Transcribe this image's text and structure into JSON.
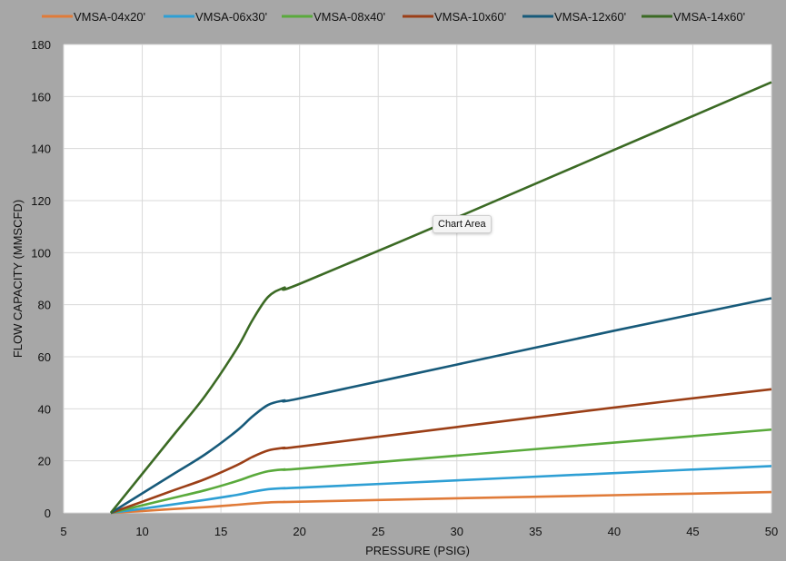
{
  "chart_data": {
    "type": "line",
    "xlabel": "PRESSURE (PSIG)",
    "ylabel": "FLOW CAPACITY (MMSCFD)",
    "xlim": [
      5,
      50
    ],
    "ylim": [
      0,
      180
    ],
    "xticks": [
      5,
      10,
      15,
      20,
      25,
      30,
      35,
      40,
      45,
      50
    ],
    "yticks": [
      0,
      20,
      40,
      60,
      80,
      100,
      120,
      140,
      160,
      180
    ],
    "grid": true,
    "legend": "top",
    "x": [
      8,
      10,
      12,
      14,
      16,
      17,
      18,
      19,
      20,
      30,
      40,
      50
    ],
    "series": [
      {
        "name": "VMSA-04x20'",
        "color": "#e07b39",
        "values": [
          0,
          0.7,
          1.5,
          2.2,
          3.1,
          3.6,
          4,
          4.2,
          4.3,
          5.6,
          6.8,
          8
        ]
      },
      {
        "name": "VMSA-06x30'",
        "color": "#2e9fd4",
        "values": [
          0,
          1.6,
          3.3,
          5,
          6.9,
          8.1,
          9.1,
          9.5,
          9.7,
          12.5,
          15.3,
          18
        ]
      },
      {
        "name": "VMSA-08x40'",
        "color": "#5aaa3c",
        "values": [
          0,
          2.9,
          5.8,
          8.7,
          12.2,
          14.3,
          16,
          16.7,
          17,
          22,
          27,
          32
        ]
      },
      {
        "name": "VMSA-10x60'",
        "color": "#9b3f17",
        "values": [
          0,
          4.3,
          8.7,
          13,
          18.3,
          21.5,
          24,
          25,
          25.5,
          33,
          40.5,
          47.5
        ]
      },
      {
        "name": "VMSA-12x60'",
        "color": "#175a7a",
        "values": [
          0,
          7.5,
          15,
          22.5,
          31.5,
          37,
          41.5,
          43.2,
          44,
          57,
          70,
          82.5
        ]
      },
      {
        "name": "VMSA-14x60'",
        "color": "#3b6a24",
        "values": [
          0,
          15,
          30,
          45,
          63,
          74,
          83,
          86.5,
          88,
          113.5,
          139.5,
          165.5
        ]
      }
    ]
  },
  "tooltip": "Chart Area"
}
